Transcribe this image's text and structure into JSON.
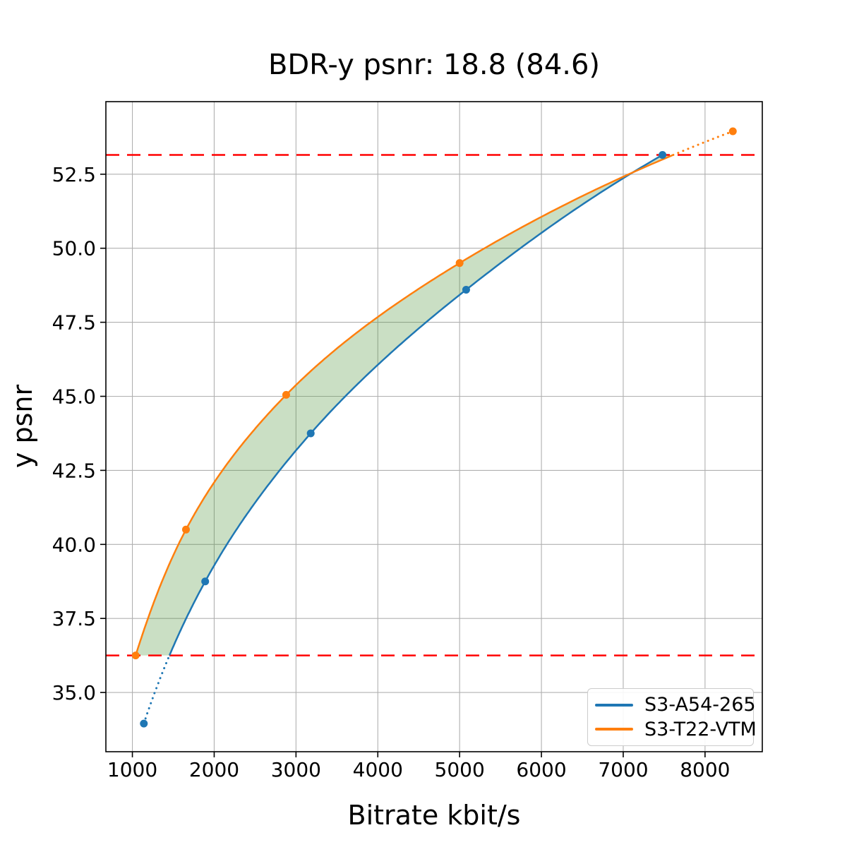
{
  "chart_data": {
    "type": "line",
    "title": "BDR-y psnr: 18.8 (84.6)",
    "xlabel": "Bitrate kbit/s",
    "ylabel": "y psnr",
    "xlim": [
      676,
      8700
    ],
    "ylim": [
      33.0,
      54.95
    ],
    "xticks": [
      1000,
      2000,
      3000,
      4000,
      5000,
      6000,
      7000,
      8000
    ],
    "yticks": [
      35.0,
      37.5,
      40.0,
      42.5,
      45.0,
      47.5,
      50.0,
      52.5
    ],
    "grid": true,
    "grid_color": "#b0b0b0",
    "legend_position": "lower-right",
    "series": [
      {
        "name": "S3-A54-265",
        "color": "#1f77b4",
        "marker": "circle",
        "points": [
          [
            1140,
            33.95
          ],
          [
            1890,
            38.75
          ],
          [
            3180,
            43.75
          ],
          [
            5080,
            48.6
          ],
          [
            7480,
            53.15
          ]
        ],
        "dotted_region": "below_lower_hline"
      },
      {
        "name": "S3-T22-VTM",
        "color": "#ff7f0e",
        "marker": "circle",
        "points": [
          [
            1040,
            36.25
          ],
          [
            1655,
            40.5
          ],
          [
            2880,
            45.05
          ],
          [
            5000,
            49.5
          ],
          [
            8340,
            53.95
          ]
        ],
        "dotted_region": "above_upper_hline"
      }
    ],
    "hlines": [
      {
        "y": 36.25,
        "color": "#ff0000",
        "style": "dashed"
      },
      {
        "y": 53.15,
        "color": "#ff0000",
        "style": "dashed"
      }
    ],
    "fill_between": {
      "color": "#50963C",
      "opacity": 0.3,
      "psnr_range": [
        36.25,
        53.15
      ]
    }
  }
}
